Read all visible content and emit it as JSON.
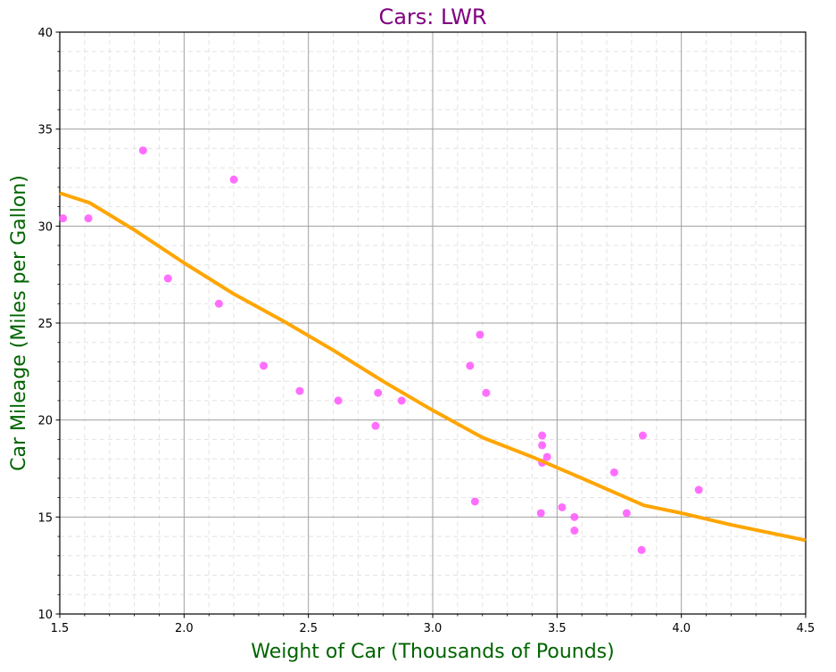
{
  "chart_data": {
    "type": "scatter",
    "title": "Cars: LWR",
    "xlabel": "Weight of Car (Thousands of Pounds)",
    "ylabel": "Car Mileage (Miles per Gallon)",
    "xlim": [
      1.5,
      4.5
    ],
    "ylim": [
      10,
      40
    ],
    "xticks": [
      1.5,
      2.0,
      2.5,
      3.0,
      3.5,
      4.0,
      4.5
    ],
    "xtick_labels": [
      "1.5",
      "2.0",
      "2.5",
      "3.0",
      "3.5",
      "4.0",
      "4.5"
    ],
    "yticks": [
      10,
      15,
      20,
      25,
      30,
      35,
      40
    ],
    "ytick_labels": [
      "10",
      "15",
      "20",
      "25",
      "30",
      "35",
      "40"
    ],
    "grid": true,
    "minor_grid": true,
    "colors": {
      "title": "#800080",
      "axis_label": "#006400",
      "points": "#ff55ff",
      "curve": "#ffa500",
      "major_grid": "#a0a0a0",
      "minor_grid": "#e3e3e3"
    },
    "series": [
      {
        "kind": "scatter",
        "x": [
          1.513,
          1.615,
          1.835,
          1.935,
          2.14,
          2.2,
          2.32,
          2.465,
          2.62,
          2.77,
          2.78,
          2.875,
          3.15,
          3.17,
          3.19,
          3.215,
          3.435,
          3.44,
          3.44,
          3.44,
          3.46,
          3.52,
          3.57,
          3.57,
          3.73,
          3.78,
          3.84,
          3.845,
          4.07
        ],
        "y": [
          30.4,
          30.4,
          33.9,
          27.3,
          26.0,
          32.4,
          22.8,
          21.5,
          21.0,
          19.7,
          21.4,
          21.0,
          22.8,
          15.8,
          24.4,
          21.4,
          15.2,
          19.2,
          18.7,
          17.8,
          18.1,
          15.5,
          15.0,
          14.3,
          17.3,
          15.2,
          13.3,
          19.2,
          16.4
        ]
      },
      {
        "kind": "line",
        "x": [
          1.5,
          1.62,
          1.8,
          2.0,
          2.2,
          2.4,
          2.6,
          2.8,
          3.0,
          3.2,
          3.4,
          3.6,
          3.85,
          4.0,
          4.2,
          4.5
        ],
        "y": [
          31.7,
          31.2,
          29.8,
          28.1,
          26.5,
          25.1,
          23.6,
          22.0,
          20.5,
          19.1,
          18.1,
          17.0,
          15.6,
          15.2,
          14.6,
          13.8
        ]
      }
    ]
  }
}
